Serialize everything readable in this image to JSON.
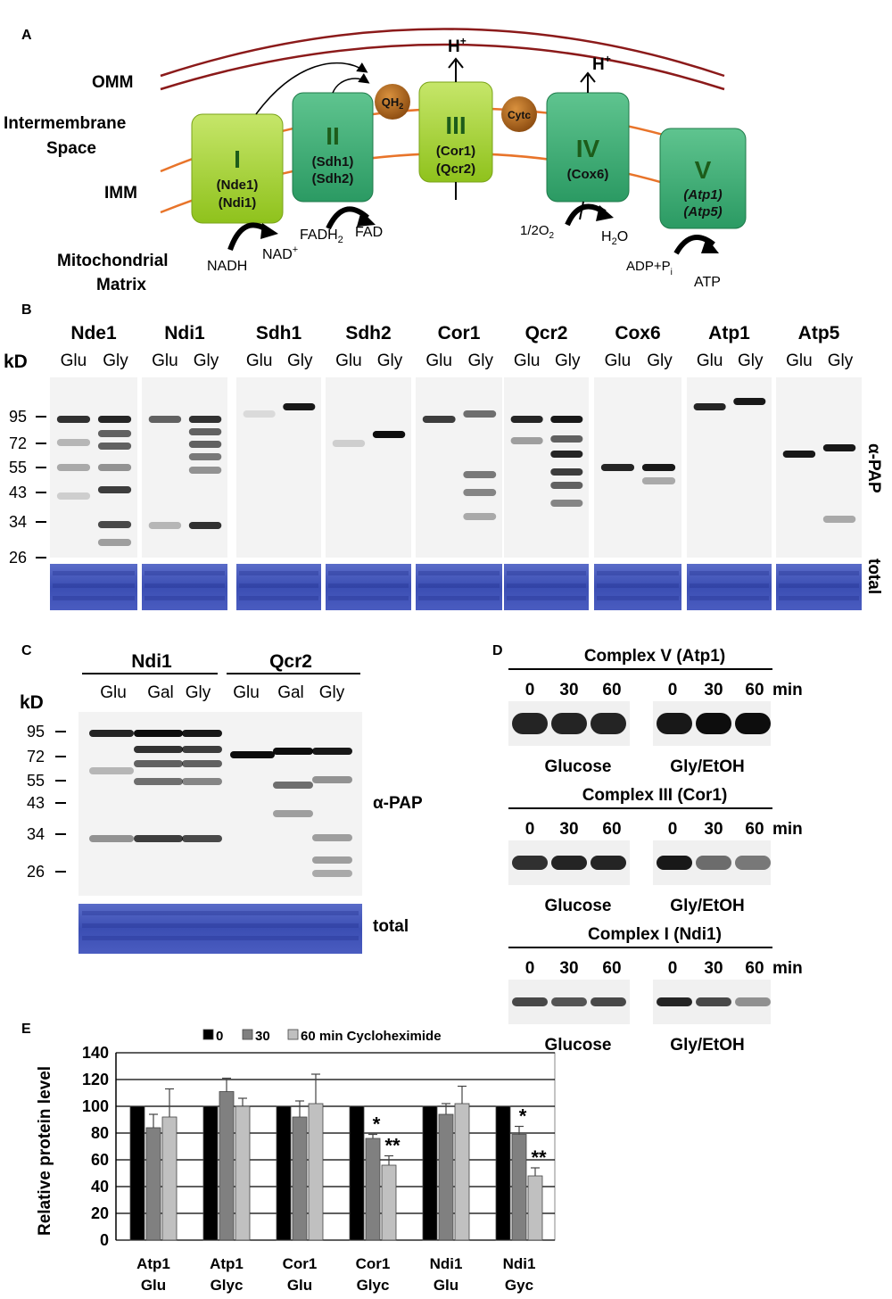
{
  "panels": {
    "A": {
      "letter": "A",
      "labels": {
        "omm": "OMM",
        "intermembrane_1": "Intermembrane",
        "intermembrane_2": "Space",
        "imm": "IMM",
        "matrix_1": "Mitochondrial",
        "matrix_2": "Matrix"
      },
      "complexes": [
        {
          "roman": "I",
          "sub1": "(Nde1)",
          "sub2": "(Ndi1)",
          "color": "#a8d232"
        },
        {
          "roman": "II",
          "sub1": "(Sdh1)",
          "sub2": "(Sdh2)",
          "color": "#3fb07a"
        },
        {
          "roman": "III",
          "sub1": "(Cor1)",
          "sub2": "(Qcr2)",
          "color": "#a8d232"
        },
        {
          "roman": "IV",
          "sub1": "(Cox6)",
          "sub2": "",
          "color": "#3fb07a"
        },
        {
          "roman": "V",
          "sub1": "(Atp1)",
          "sub2": "(Atp5)",
          "color": "#3fb07a"
        }
      ],
      "carriers": {
        "qh2": "QH",
        "qh2_sub": "2",
        "cytc": "Cytc"
      },
      "protons": {
        "h": "H",
        "plus": "+"
      },
      "reactions": {
        "nadh": "NADH",
        "nad": "NAD",
        "nad_plus": "+",
        "fadh2": "FADH",
        "fadh2_sub": "2",
        "fad": "FAD",
        "o2": "1/2O",
        "o2_sub": "2",
        "h2o_h": "H",
        "h2o_sub": "2",
        "h2o_o": "O",
        "adp": "ADP+P",
        "adp_sub": "i",
        "atp": "ATP"
      },
      "colors": {
        "membrane_outer": "#8b1a1a",
        "membrane_inner": "#e8742a",
        "carrier": "#b5651d"
      }
    },
    "B": {
      "letter": "B",
      "kd": "kD",
      "proteins": [
        "Nde1",
        "Ndi1",
        "Sdh1",
        "Sdh2",
        "Cor1",
        "Qcr2",
        "Cox6",
        "Atp1",
        "Atp5"
      ],
      "lanes": [
        "Glu",
        "Gly"
      ],
      "markers": [
        "95",
        "72",
        "55",
        "43",
        "34",
        "26"
      ],
      "antibody": "α-PAP",
      "total": "total"
    },
    "C": {
      "letter": "C",
      "kd": "kD",
      "groups": [
        "Ndi1",
        "Qcr2"
      ],
      "lanes": [
        "Glu",
        "Gal",
        "Gly",
        "Glu",
        "Gal",
        "Gly"
      ],
      "markers": [
        "95",
        "72",
        "55",
        "43",
        "34",
        "26"
      ],
      "antibody": "α-PAP",
      "total": "total"
    },
    "D": {
      "letter": "D",
      "blocks": [
        {
          "title": "Complex V (Atp1)",
          "times": [
            "0",
            "30",
            "60",
            "0",
            "30",
            "60"
          ],
          "unit": "min",
          "cond1": "Glucose",
          "cond2": "Gly/EtOH"
        },
        {
          "title": "Complex III (Cor1)",
          "times": [
            "0",
            "30",
            "60",
            "0",
            "30",
            "60"
          ],
          "unit": "min",
          "cond1": "Glucose",
          "cond2": "Gly/EtOH"
        },
        {
          "title": "Complex I (Ndi1)",
          "times": [
            "0",
            "30",
            "60",
            "0",
            "30",
            "60"
          ],
          "unit": "min",
          "cond1": "Glucose",
          "cond2": "Gly/EtOH"
        }
      ]
    },
    "E": {
      "letter": "E",
      "chart_data": {
        "type": "bar",
        "categories": [
          [
            "Atp1",
            "Glu"
          ],
          [
            "Atp1",
            "Glyc"
          ],
          [
            "Cor1",
            "Glu"
          ],
          [
            "Cor1",
            "Glyc"
          ],
          [
            "Ndi1",
            "Glu"
          ],
          [
            "Ndi1",
            "Gyc"
          ]
        ],
        "series": [
          {
            "name": "0",
            "color": "#000000",
            "values": [
              100,
              100,
              100,
              100,
              100,
              100
            ],
            "errors": [
              0,
              0,
              0,
              0,
              0,
              0
            ]
          },
          {
            "name": "30",
            "color": "#808080",
            "values": [
              84,
              111,
              92,
              76,
              94,
              79
            ],
            "errors": [
              10,
              10,
              12,
              3,
              8,
              6
            ]
          },
          {
            "name": "60 min Cycloheximide",
            "color": "#c0c0c0",
            "values": [
              92,
              100,
              102,
              56,
              102,
              48
            ],
            "errors": [
              21,
              6,
              22,
              7,
              13,
              6
            ]
          }
        ],
        "significance": [
          {
            "category": 3,
            "series": 1,
            "mark": "*"
          },
          {
            "category": 3,
            "series": 2,
            "mark": "**"
          },
          {
            "category": 5,
            "series": 1,
            "mark": "*"
          },
          {
            "category": 5,
            "series": 2,
            "mark": "**"
          }
        ],
        "ylabel": "Relative protein level",
        "ylim": [
          0,
          140
        ],
        "yticks": [
          "0",
          "20",
          "40",
          "60",
          "80",
          "100",
          "120",
          "140"
        ],
        "grid": true,
        "legend_position": "top"
      }
    }
  }
}
